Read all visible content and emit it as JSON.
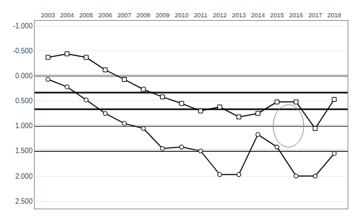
{
  "chart_data": {
    "type": "line",
    "x": [
      2003,
      2004,
      2005,
      2006,
      2007,
      2008,
      2009,
      2010,
      2011,
      2012,
      2013,
      2014,
      2015,
      2016,
      2017,
      2018
    ],
    "series": [
      {
        "values": [
          -0.37,
          -0.44,
          -0.37,
          -0.12,
          0.07,
          0.27,
          0.42,
          0.55,
          0.7,
          0.62,
          0.82,
          0.75,
          0.52,
          0.52,
          1.05,
          0.47
        ],
        "color": "#000000",
        "marker": "square"
      },
      {
        "values": [
          0.07,
          0.22,
          0.48,
          0.75,
          0.95,
          1.05,
          1.45,
          1.42,
          1.5,
          1.97,
          1.97,
          1.17,
          1.42,
          2.0,
          2.0,
          1.55
        ],
        "color": "#000000",
        "marker": "circle"
      }
    ],
    "xlim": [
      2002.3,
      2018.7
    ],
    "xticks": [
      2003,
      2004,
      2005,
      2006,
      2007,
      2008,
      2009,
      2010,
      2011,
      2012,
      2013,
      2014,
      2015,
      2016,
      2017,
      2018
    ],
    "ylim": [
      2.65,
      -1.1
    ],
    "yticks": [
      {
        "value": -1.0,
        "label": "-1.000"
      },
      {
        "value": -0.5,
        "label": "-0.500"
      },
      {
        "value": 0.0,
        "label": "0.000"
      },
      {
        "value": 0.5,
        "label": "0.500"
      },
      {
        "value": 1.0,
        "label": "1.000"
      },
      {
        "value": 1.5,
        "label": "1.500"
      },
      {
        "value": 2.0,
        "label": "2.000"
      },
      {
        "value": 2.5,
        "label": "2.500"
      }
    ],
    "grid": "y",
    "reference_lines": [
      0.0,
      0.333,
      0.667,
      1.0,
      1.5
    ],
    "highlight": {
      "x": 2015.6,
      "y": 1.0,
      "width": 1.6,
      "height": 0.85
    }
  }
}
